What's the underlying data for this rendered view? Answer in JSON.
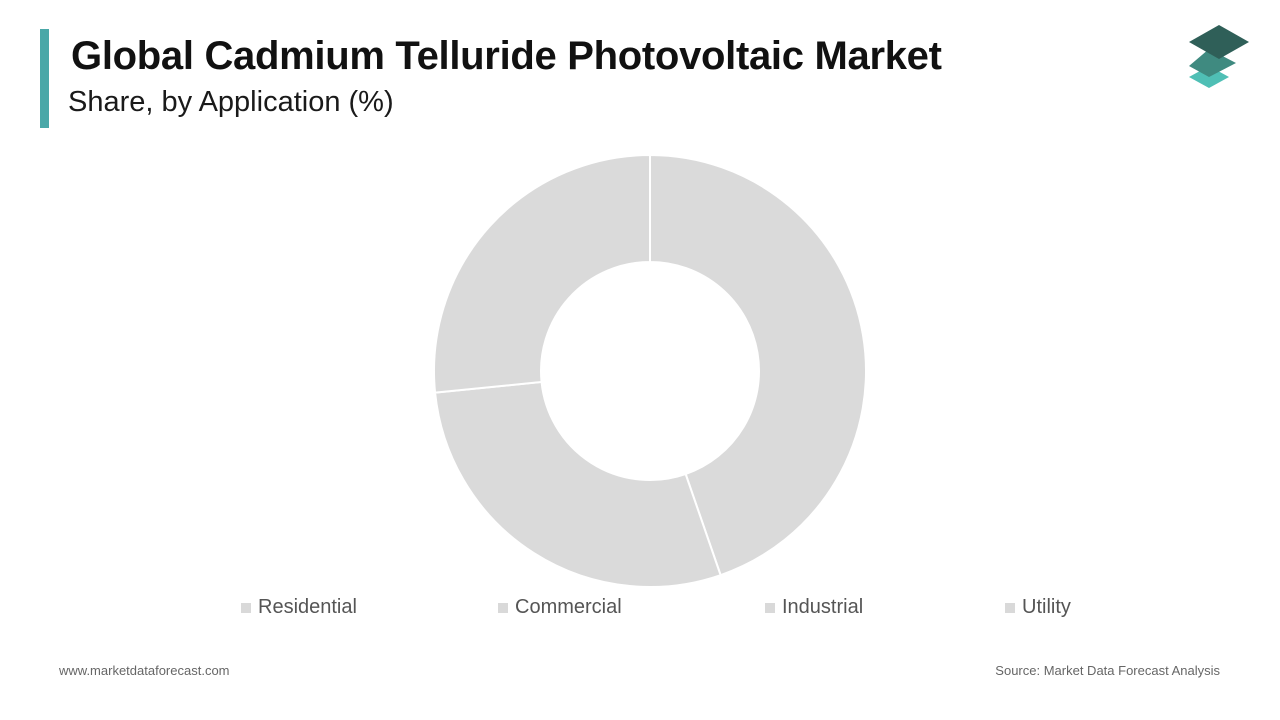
{
  "header": {
    "title": "Global Cadmium Telluride Photovoltaic Market",
    "subtitle": "Share, by Application (%)"
  },
  "logo": {
    "icon": "stacked-layers-logo",
    "colors": [
      "#2f5f58",
      "#3f8a80",
      "#4fbfb5"
    ]
  },
  "chart_data": {
    "type": "pie",
    "donut": true,
    "title": "Global Cadmium Telluride Photovoltaic Market",
    "subtitle": "Share, by Application (%)",
    "categories": [
      "Residential",
      "Commercial",
      "Industrial",
      "Utility"
    ],
    "values": [
      44.7,
      28.7,
      26.6,
      0
    ],
    "slice_color": "#dadada",
    "slice_separator_color": "#ffffff",
    "legend_colors": [
      "#d9d9d9",
      "#d9d9d9",
      "#d9d9d9",
      "#d9d9d9"
    ],
    "legend_position": "bottom"
  },
  "footer": {
    "website": "www.marketdataforecast.com",
    "source": "Source: Market Data Forecast Analysis"
  }
}
